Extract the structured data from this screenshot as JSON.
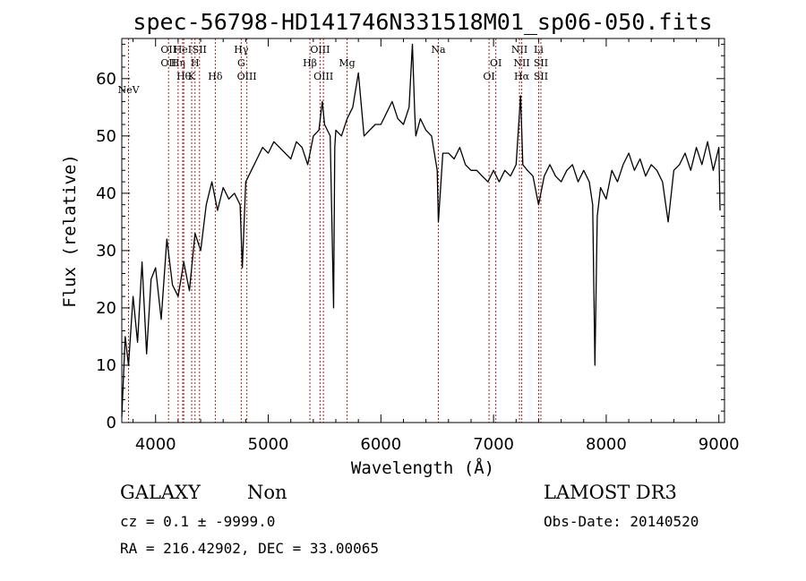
{
  "chart_data": {
    "type": "line",
    "title": "spec-56798-HD141746N331518M01_sp06-050.fits",
    "xlabel": "Wavelength (Å)",
    "ylabel": "Flux (relative)",
    "xlim": [
      3700,
      9050
    ],
    "ylim": [
      0,
      67
    ],
    "xticks": [
      4000,
      5000,
      6000,
      7000,
      8000,
      9000
    ],
    "yticks": [
      0,
      10,
      20,
      30,
      40,
      50,
      60
    ],
    "grid": false,
    "line_color": "#000000",
    "marker_color": "#b22222",
    "series": [
      {
        "x": [
          3700,
          3730,
          3760,
          3800,
          3840,
          3880,
          3920,
          3960,
          4000,
          4050,
          4100,
          4150,
          4200,
          4250,
          4300,
          4350,
          4400,
          4450,
          4500,
          4550,
          4600,
          4650,
          4700,
          4750,
          4770,
          4800,
          4850,
          4900,
          4950,
          5000,
          5050,
          5100,
          5150,
          5200,
          5250,
          5300,
          5350,
          5400,
          5450,
          5480,
          5500,
          5550,
          5580,
          5590,
          5600,
          5650,
          5700,
          5750,
          5800,
          5850,
          5900,
          5950,
          6000,
          6050,
          6100,
          6150,
          6200,
          6250,
          6280,
          6300,
          6310,
          6350,
          6400,
          6450,
          6500,
          6510,
          6550,
          6600,
          6650,
          6700,
          6750,
          6800,
          6850,
          6900,
          6950,
          7000,
          7050,
          7100,
          7150,
          7200,
          7240,
          7260,
          7300,
          7350,
          7400,
          7450,
          7500,
          7550,
          7600,
          7650,
          7700,
          7750,
          7800,
          7850,
          7880,
          7900,
          7920,
          7950,
          8000,
          8050,
          8100,
          8150,
          8200,
          8250,
          8300,
          8350,
          8400,
          8450,
          8500,
          8550,
          8600,
          8650,
          8700,
          8750,
          8800,
          8850,
          8900,
          8950,
          9000,
          9010
        ],
        "y": [
          1,
          15,
          10,
          22,
          14,
          28,
          12,
          25,
          27,
          18,
          32,
          24,
          22,
          28,
          23,
          33,
          30,
          38,
          42,
          37,
          41,
          39,
          40,
          38,
          27,
          42,
          44,
          46,
          48,
          47,
          49,
          48,
          47,
          46,
          49,
          48,
          45,
          50,
          51,
          56,
          52,
          50,
          20,
          48,
          51,
          50,
          53,
          55,
          61,
          50,
          51,
          52,
          52,
          54,
          56,
          53,
          52,
          55,
          66,
          54,
          50,
          53,
          51,
          50,
          44,
          35,
          47,
          47,
          46,
          48,
          45,
          44,
          44,
          43,
          42,
          44,
          42,
          44,
          43,
          45,
          57,
          45,
          44,
          43,
          38,
          43,
          45,
          43,
          42,
          44,
          45,
          42,
          44,
          42,
          38,
          10,
          36,
          41,
          39,
          44,
          42,
          45,
          47,
          44,
          46,
          43,
          45,
          44,
          42,
          35,
          44,
          45,
          47,
          44,
          48,
          45,
          49,
          44,
          48,
          37
        ]
      }
    ],
    "lines": [
      {
        "x": 3760,
        "label": "NeV",
        "row": 4
      },
      {
        "x": 4115,
        "label": "OII",
        "row": 1
      },
      {
        "x": 4115,
        "label": "OII",
        "row": 2
      },
      {
        "x": 4200,
        "label": "Hη",
        "row": 2
      },
      {
        "x": 4250,
        "label": "Hθ",
        "row": 3
      },
      {
        "x": 4240,
        "label": "HeI",
        "row": 1
      },
      {
        "x": 4320,
        "label": "K",
        "row": 3
      },
      {
        "x": 4350,
        "label": "H",
        "row": 2
      },
      {
        "x": 4390,
        "label": "SII",
        "row": 1
      },
      {
        "x": 4530,
        "label": "Hδ",
        "row": 3
      },
      {
        "x": 4760,
        "label": "Hγ",
        "row": 1
      },
      {
        "x": 4760,
        "label": "G",
        "row": 2
      },
      {
        "x": 4810,
        "label": "OIII",
        "row": 3
      },
      {
        "x": 5370,
        "label": "Hβ",
        "row": 2
      },
      {
        "x": 5460,
        "label": "OIII",
        "row": 1
      },
      {
        "x": 5490,
        "label": "OIII",
        "row": 3
      },
      {
        "x": 5700,
        "label": "Mg",
        "row": 2
      },
      {
        "x": 6510,
        "label": "Na",
        "row": 1
      },
      {
        "x": 6960,
        "label": "OI",
        "row": 3
      },
      {
        "x": 7020,
        "label": "OI",
        "row": 2
      },
      {
        "x": 7230,
        "label": "NII",
        "row": 1
      },
      {
        "x": 7250,
        "label": "NII",
        "row": 2
      },
      {
        "x": 7250,
        "label": "Hα",
        "row": 3
      },
      {
        "x": 7400,
        "label": "Li",
        "row": 1
      },
      {
        "x": 7420,
        "label": "SII",
        "row": 2
      },
      {
        "x": 7420,
        "label": "SII",
        "row": 3
      }
    ]
  },
  "info": {
    "class": "GALAXY",
    "subclass": "Non",
    "survey": "LAMOST DR3",
    "cz": "cz = 0.1 ± -9999.0",
    "obs_date": "Obs-Date: 20140520",
    "radec": "RA = 216.42902, DEC =  33.00065"
  }
}
